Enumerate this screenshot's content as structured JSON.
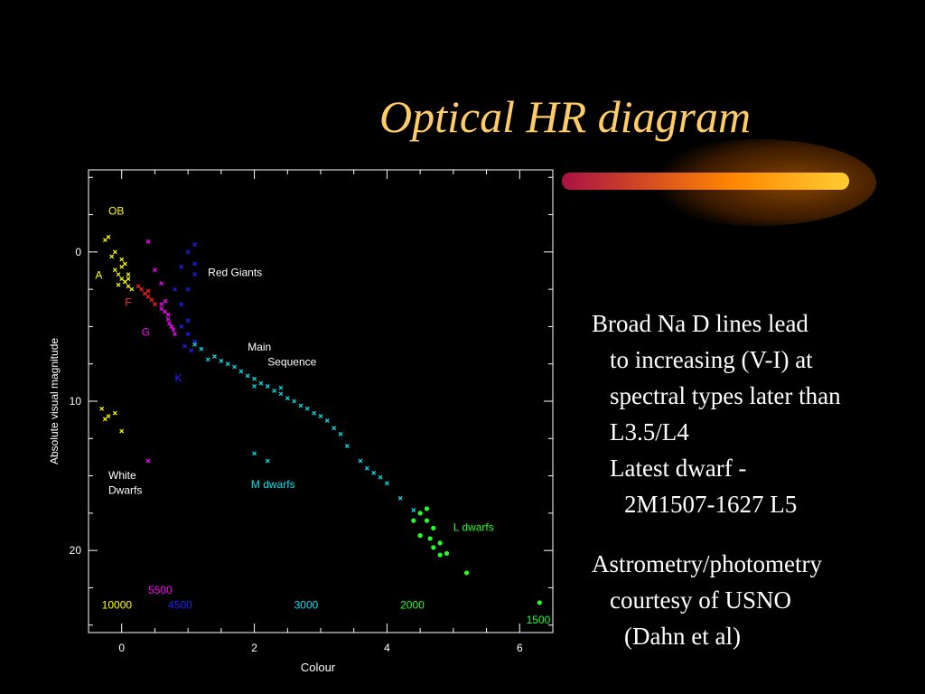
{
  "slide": {
    "title": "Optical HR diagram",
    "body_lines": [
      {
        "text": "Broad Na D lines lead",
        "indent": 0
      },
      {
        "text": "to increasing (V-I) at",
        "indent": 1
      },
      {
        "text": "spectral types later than",
        "indent": 1
      },
      {
        "text": "L3.5/L4",
        "indent": 1
      },
      {
        "text": "Latest dwarf -",
        "indent": 1
      },
      {
        "text": "2M1507-1627  L5",
        "indent": 2
      }
    ],
    "credit_lines": [
      {
        "text": "Astrometry/photometry",
        "indent": 0
      },
      {
        "text": "courtesy of USNO",
        "indent": 1
      },
      {
        "text": "(Dahn et al)",
        "indent": 2
      }
    ],
    "colors": {
      "title": "#ffcc66",
      "background": "#000000",
      "text": "#ffffff"
    }
  },
  "chart_data": {
    "type": "scatter",
    "xlabel": "Colour",
    "ylabel": "Absolute visual magnitude",
    "xlim": [
      -0.5,
      6.5
    ],
    "ylim": [
      25.5,
      -5.5
    ],
    "y_inverted": true,
    "xticks": [
      0,
      2,
      4,
      6
    ],
    "yticks": [
      0,
      10,
      20
    ],
    "series": [
      {
        "name": "OB",
        "color": "#ffff00",
        "marker": "x",
        "points": [
          [
            -0.2,
            -1
          ],
          [
            -0.1,
            0
          ],
          [
            0,
            1
          ],
          [
            -0.05,
            1.5
          ],
          [
            0.05,
            2
          ],
          [
            -0.1,
            1.2
          ],
          [
            0,
            0.5
          ],
          [
            0.1,
            1.8
          ],
          [
            -0.15,
            0.3
          ],
          [
            0.05,
            0.8
          ],
          [
            -0.25,
            -0.8
          ]
        ]
      },
      {
        "name": "A",
        "color": "#ffff00",
        "marker": "x",
        "points": [
          [
            0.05,
            2
          ],
          [
            0.1,
            2.3
          ],
          [
            0,
            1.8
          ],
          [
            0.15,
            2.5
          ],
          [
            -0.05,
            2.2
          ],
          [
            0.1,
            1.5
          ]
        ]
      },
      {
        "name": "F",
        "color": "#ff2020",
        "marker": "x",
        "points": [
          [
            0.3,
            2.5
          ],
          [
            0.4,
            3
          ],
          [
            0.35,
            2.8
          ],
          [
            0.45,
            3.2
          ],
          [
            0.5,
            3.5
          ],
          [
            0.25,
            2.3
          ],
          [
            0.4,
            2.6
          ]
        ]
      },
      {
        "name": "G",
        "color": "#ff00ff",
        "marker": "x",
        "points": [
          [
            0.6,
            3.5
          ],
          [
            0.65,
            4
          ],
          [
            0.7,
            4.5
          ],
          [
            0.75,
            5
          ],
          [
            0.8,
            5.5
          ],
          [
            0.6,
            3.8
          ],
          [
            0.7,
            4.2
          ],
          [
            0.72,
            4.8
          ],
          [
            0.66,
            3.3
          ],
          [
            0.78,
            5.2
          ],
          [
            0.4,
            -0.7
          ],
          [
            0.5,
            1.2
          ],
          [
            0.6,
            2.1
          ],
          [
            0.4,
            14
          ]
        ]
      },
      {
        "name": "K",
        "color": "#2020ff",
        "marker": "x",
        "points": [
          [
            0.9,
            5
          ],
          [
            1,
            5.5
          ],
          [
            1.1,
            6
          ],
          [
            0.95,
            6.3
          ],
          [
            1.05,
            6.6
          ],
          [
            1,
            4.6
          ],
          [
            0.9,
            3.5
          ],
          [
            1,
            2.5
          ],
          [
            1.1,
            1.5
          ],
          [
            1,
            0
          ],
          [
            1.1,
            -0.5
          ],
          [
            0.9,
            1
          ],
          [
            1.1,
            0.8
          ],
          [
            0.8,
            2.5
          ]
        ]
      },
      {
        "name": "Main Sequence",
        "color": "#00e5ee",
        "marker": "x",
        "points": [
          [
            1.2,
            6.5
          ],
          [
            1.4,
            7
          ],
          [
            1.6,
            7.5
          ],
          [
            1.8,
            8
          ],
          [
            2,
            8.5
          ],
          [
            2.2,
            9
          ],
          [
            2.4,
            9.5
          ],
          [
            2.6,
            10
          ],
          [
            2.8,
            10.5
          ],
          [
            3,
            11
          ],
          [
            1.3,
            7.2
          ],
          [
            1.7,
            7.7
          ],
          [
            2.1,
            8.8
          ],
          [
            2.5,
            9.8
          ],
          [
            2.9,
            10.8
          ],
          [
            1.5,
            7.3
          ],
          [
            1.9,
            8.3
          ],
          [
            2.3,
            9.3
          ],
          [
            2.7,
            10.3
          ],
          [
            3.1,
            11.3
          ],
          [
            3.2,
            11.8
          ],
          [
            3.3,
            12.2
          ],
          [
            1.1,
            6.2
          ],
          [
            2,
            9
          ],
          [
            2.4,
            9.1
          ]
        ]
      },
      {
        "name": "M dwarfs",
        "color": "#00e5ee",
        "marker": "x",
        "points": [
          [
            3.4,
            13
          ],
          [
            3.6,
            14
          ],
          [
            3.8,
            14.8
          ],
          [
            4,
            15.5
          ],
          [
            4.2,
            16.5
          ],
          [
            4.4,
            17.3
          ],
          [
            3.7,
            14.5
          ],
          [
            3.9,
            15.1
          ],
          [
            2,
            13.5
          ],
          [
            2.2,
            14
          ]
        ]
      },
      {
        "name": "White Dwarfs",
        "color": "#ffff00",
        "marker": "x",
        "points": [
          [
            -0.3,
            10.5
          ],
          [
            -0.2,
            11
          ],
          [
            -0.1,
            10.8
          ],
          [
            0,
            12
          ],
          [
            -0.25,
            11.2
          ]
        ]
      },
      {
        "name": "L dwarfs",
        "color": "#22ff22",
        "marker": "dot",
        "points": [
          [
            4.5,
            17.5
          ],
          [
            4.6,
            18
          ],
          [
            4.7,
            18.5
          ],
          [
            4.5,
            19
          ],
          [
            4.65,
            19.2
          ],
          [
            4.8,
            19.5
          ],
          [
            4.9,
            20.2
          ],
          [
            4.7,
            19.8
          ],
          [
            4.4,
            18
          ],
          [
            4.6,
            17.2
          ],
          [
            5.2,
            21.5
          ],
          [
            6.3,
            23.5
          ],
          [
            4.8,
            20.3
          ]
        ]
      }
    ],
    "annotations": [
      {
        "text": "OB",
        "color": "#ffff00",
        "x": -0.2,
        "y": -2.5
      },
      {
        "text": "A",
        "color": "#ffff00",
        "x": -0.4,
        "y": 1.8
      },
      {
        "text": "F",
        "color": "#ff3030",
        "x": 0.05,
        "y": 3.6
      },
      {
        "text": "G",
        "color": "#ff00ff",
        "x": 0.3,
        "y": 5.6
      },
      {
        "text": "K",
        "color": "#2020ff",
        "x": 0.8,
        "y": 8.7
      },
      {
        "text": "Red Giants",
        "color": "#ffffff",
        "x": 1.3,
        "y": 1.6
      },
      {
        "text": "Main",
        "color": "#ffffff",
        "x": 1.9,
        "y": 6.6
      },
      {
        "text": "Sequence",
        "color": "#ffffff",
        "x": 2.2,
        "y": 7.6
      },
      {
        "text": "White",
        "color": "#ffffff",
        "x": -0.2,
        "y": 15.2
      },
      {
        "text": "Dwarfs",
        "color": "#ffffff",
        "x": -0.2,
        "y": 16.2
      },
      {
        "text": "M dwarfs",
        "color": "#00e5ee",
        "x": 1.95,
        "y": 15.8
      },
      {
        "text": "L dwarfs",
        "color": "#22ff22",
        "x": 5.0,
        "y": 18.7
      },
      {
        "text": "5500",
        "color": "#ff00ff",
        "x": 0.4,
        "y": 22.9
      },
      {
        "text": "10000",
        "color": "#ffff00",
        "x": -0.3,
        "y": 23.9
      },
      {
        "text": "4500",
        "color": "#2020ff",
        "x": 0.7,
        "y": 23.9
      },
      {
        "text": "3000",
        "color": "#00e5ee",
        "x": 2.6,
        "y": 23.9
      },
      {
        "text": "2000",
        "color": "#22ff22",
        "x": 4.2,
        "y": 23.9
      },
      {
        "text": "1500",
        "color": "#22ff22",
        "x": 6.1,
        "y": 24.9
      }
    ],
    "grid": false
  }
}
